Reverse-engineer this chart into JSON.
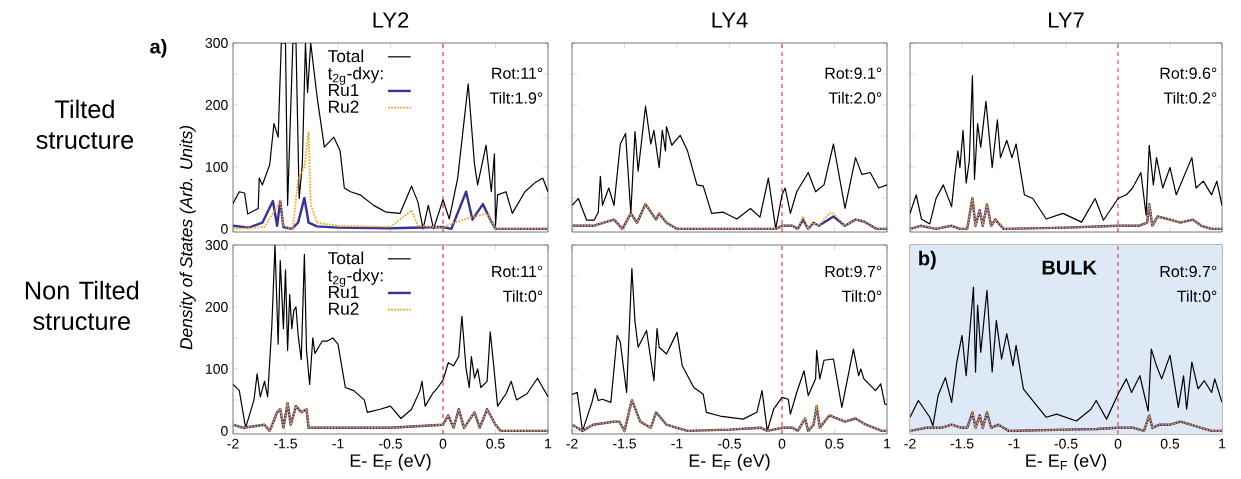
{
  "chart_data": [
    {
      "type": "line",
      "title": "LY2",
      "xlim": [
        -2,
        1
      ],
      "ylim": [
        -5,
        300
      ],
      "xticks": [
        -2,
        -1.5,
        -1,
        -0.5,
        0,
        0.5,
        1
      ],
      "yticks": [
        0,
        {
          "value": 50,
          "label": null
        },
        100,
        {
          "value": 150,
          "label": null
        },
        200,
        {
          "value": 250,
          "label": null
        },
        300
      ],
      "tick_labels": "y",
      "legend": "top",
      "legend_title": "t$_{2g}$-dxy:",
      "annotations": [
        "a)",
        "Tilted structure",
        "Rot:11°",
        "Tilt:1.9°"
      ],
      "ref_lines": [
        {
          "axis": "x",
          "value": 0,
          "color": "#e8363c",
          "line_style": "dashed"
        }
      ],
      "series": [
        {
          "name": "Total",
          "color": "#000000",
          "x": [
            -2,
            -1.94,
            -1.89,
            -1.86,
            -1.76,
            -1.75,
            -1.72,
            -1.65,
            -1.61,
            -1.57,
            -1.54,
            -1.5,
            -1.48,
            -1.43,
            -1.4,
            -1.37,
            -1.34,
            -1.31,
            -1.29,
            -1.26,
            -1.2,
            -1.13,
            -1.04,
            -0.98,
            -0.94,
            -0.88,
            -0.79,
            -0.66,
            -0.54,
            -0.41,
            -0.3,
            -0.24,
            -0.19,
            -0.14,
            -0.09,
            0,
            0.06,
            0.14,
            0.24,
            0.3,
            0.33,
            0.41,
            0.46,
            0.49,
            0.5,
            0.52,
            0.6,
            0.66,
            0.78,
            0.88,
            0.95,
            1
          ],
          "values": [
            41,
            60,
            58,
            24,
            33,
            82,
            71,
            104,
            170,
            148,
            300,
            300,
            38,
            300,
            300,
            49,
            104,
            300,
            220,
            300,
            214,
            132,
            148,
            126,
            66,
            60,
            55,
            38,
            27,
            25,
            69,
            44,
            0,
            38,
            0,
            47,
            16,
            82,
            234,
            104,
            71,
            135,
            60,
            121,
            5,
            55,
            60,
            25,
            60,
            75,
            82,
            60
          ]
        },
        {
          "name": "Ru1",
          "color": "#33339a",
          "x": [
            -2,
            -1.85,
            -1.72,
            -1.62,
            -1.58,
            -1.55,
            -1.52,
            -1.44,
            -1.38,
            -1.32,
            -1.28,
            -1.2,
            -1,
            -0.5,
            0,
            0.08,
            0.22,
            0.28,
            0.38,
            0.45,
            0.5,
            1
          ],
          "values": [
            5,
            2,
            10,
            45,
            5,
            45,
            3,
            0,
            10,
            50,
            10,
            4,
            2,
            1,
            3,
            0,
            60,
            15,
            40,
            15,
            0,
            0
          ]
        },
        {
          "name": "Ru2",
          "color": "#f7a21b",
          "line_style": "dotted",
          "x": [
            -2,
            -1.7,
            -1.55,
            -1.52,
            -1.43,
            -1.38,
            -1.32,
            -1.28,
            -1.26,
            -1.2,
            -1,
            -0.5,
            -0.3,
            -0.24,
            0,
            0.1,
            0.3,
            0.42,
            0.5,
            1
          ],
          "values": [
            0,
            3,
            45,
            5,
            0,
            80,
            100,
            157,
            40,
            10,
            5,
            3,
            30,
            5,
            2,
            10,
            20,
            25,
            0,
            0
          ]
        }
      ]
    },
    {
      "type": "line",
      "title": "LY4",
      "xlim": [
        -2,
        1
      ],
      "ylim": [
        -5,
        300
      ],
      "xticks": [
        -2,
        -1.5,
        -1,
        -0.5,
        0,
        0.5,
        1
      ],
      "yticks": [
        0,
        {
          "value": 50,
          "label": null
        },
        100,
        {
          "value": 150,
          "label": null
        },
        200,
        {
          "value": 250,
          "label": null
        },
        300
      ],
      "tick_labels": false,
      "annotations": [
        "Rot:9.1°",
        "Tilt:2.0°"
      ],
      "ref_lines": [
        {
          "axis": "x",
          "value": 0,
          "color": "#e8363c",
          "line_style": "dashed"
        }
      ],
      "series": [
        {
          "color": "#000000",
          "x": [
            -2,
            -1.94,
            -1.86,
            -1.79,
            -1.75,
            -1.73,
            -1.71,
            -1.65,
            -1.6,
            -1.54,
            -1.49,
            -1.44,
            -1.4,
            -1.37,
            -1.3,
            -1.25,
            -1.22,
            -1.17,
            -1.14,
            -1.11,
            -1.1,
            -1.05,
            -0.97,
            -0.9,
            -0.81,
            -0.75,
            -0.67,
            -0.56,
            -0.43,
            -0.3,
            -0.21,
            -0.13,
            -0.06,
            0,
            0.03,
            0.08,
            0.14,
            0.25,
            0.32,
            0.4,
            0.49,
            0.6,
            0.7,
            0.76,
            0.84,
            0.92,
            1
          ],
          "values": [
            38,
            49,
            14,
            14,
            27,
            85,
            38,
            66,
            38,
            137,
            154,
            25,
            157,
            93,
            198,
            137,
            159,
            99,
            159,
            126,
            165,
            135,
            151,
            126,
            71,
            69,
            25,
            27,
            16,
            33,
            19,
            82,
            0,
            55,
            66,
            25,
            60,
            91,
            60,
            71,
            137,
            33,
            115,
            88,
            91,
            66,
            71
          ]
        },
        {
          "color": "#33339a",
          "x": [
            -2,
            -1.8,
            -1.6,
            -1.52,
            -1.44,
            -1.38,
            -1.3,
            -1.2,
            -1.17,
            -1.1,
            -1,
            -0.5,
            -0.06,
            0,
            0.1,
            0.15,
            0.2,
            0.25,
            0.3,
            0.35,
            0.49,
            0.6,
            0.7,
            0.78,
            0.9,
            1
          ],
          "values": [
            5,
            5,
            15,
            0,
            25,
            10,
            40,
            15,
            25,
            10,
            0,
            0,
            0,
            5,
            5,
            0,
            15,
            0,
            10,
            5,
            20,
            5,
            15,
            12,
            0,
            0
          ]
        },
        {
          "color": "#f7a21b",
          "line_style": "dotted",
          "x": [
            -2,
            -1.8,
            -1.6,
            -1.52,
            -1.44,
            -1.38,
            -1.3,
            -1.2,
            -1.17,
            -1.1,
            -1,
            -0.5,
            -0.06,
            0,
            0.1,
            0.15,
            0.2,
            0.25,
            0.3,
            0.35,
            0.45,
            0.49,
            0.6,
            0.7,
            0.78,
            0.9,
            1
          ],
          "values": [
            5,
            5,
            15,
            0,
            25,
            10,
            40,
            15,
            25,
            10,
            0,
            0,
            0,
            5,
            5,
            0,
            20,
            0,
            10,
            5,
            25,
            25,
            5,
            15,
            12,
            0,
            0
          ]
        }
      ]
    },
    {
      "type": "line",
      "title": "LY7",
      "xlim": [
        -2,
        1
      ],
      "ylim": [
        -5,
        300
      ],
      "xticks": [
        -2,
        -1.5,
        -1,
        -0.5,
        0,
        0.5,
        1
      ],
      "yticks": [
        0,
        {
          "value": 50,
          "label": null
        },
        100,
        {
          "value": 150,
          "label": null
        },
        200,
        {
          "value": 250,
          "label": null
        },
        300
      ],
      "tick_labels": false,
      "annotations": [
        "Rot:9.6°",
        "Tilt:0.2°"
      ],
      "ref_lines": [
        {
          "axis": "x",
          "value": 0,
          "color": "#e8363c",
          "line_style": "dashed"
        }
      ],
      "series": [
        {
          "color": "#000000",
          "x": [
            -2,
            -1.94,
            -1.89,
            -1.81,
            -1.75,
            -1.68,
            -1.6,
            -1.57,
            -1.54,
            -1.52,
            -1.49,
            -1.46,
            -1.43,
            -1.4,
            -1.38,
            -1.35,
            -1.32,
            -1.27,
            -1.21,
            -1.16,
            -1.13,
            -1.07,
            -1.02,
            -0.98,
            -0.9,
            -0.82,
            -0.69,
            -0.53,
            -0.35,
            -0.22,
            -0.14,
            0,
            0.08,
            0.14,
            0.22,
            0.27,
            0.3,
            0.34,
            0.37,
            0.43,
            0.5,
            0.56,
            0.71,
            0.75,
            0.82,
            0.9,
            0.95,
            1
          ],
          "values": [
            25,
            55,
            16,
            8,
            49,
            71,
            36,
            85,
            126,
            99,
            159,
            74,
            110,
            247,
            80,
            170,
            132,
            206,
            99,
            176,
            115,
            143,
            115,
            137,
            55,
            49,
            16,
            25,
            11,
            49,
            14,
            49,
            55,
            66,
            91,
            22,
            135,
            71,
            115,
            66,
            99,
            55,
            115,
            66,
            77,
            55,
            77,
            38
          ]
        },
        {
          "color": "#33339a",
          "x": [
            -2,
            -1.9,
            -1.75,
            -1.6,
            -1.52,
            -1.45,
            -1.4,
            -1.37,
            -1.33,
            -1.3,
            -1.26,
            -1.22,
            -1.18,
            -1.1,
            -0.5,
            0,
            0.2,
            0.28,
            0.3,
            0.33,
            0.38,
            0.5,
            0.6,
            0.72,
            0.8,
            0.9,
            1
          ],
          "values": [
            0,
            5,
            0,
            5,
            0,
            0,
            50,
            5,
            30,
            5,
            40,
            5,
            15,
            0,
            2,
            5,
            5,
            10,
            40,
            5,
            20,
            15,
            10,
            15,
            5,
            0,
            0
          ]
        },
        {
          "color": "#f7a21b",
          "line_style": "dotted",
          "x": [
            -2,
            -1.9,
            -1.75,
            -1.6,
            -1.52,
            -1.45,
            -1.4,
            -1.37,
            -1.33,
            -1.3,
            -1.26,
            -1.22,
            -1.18,
            -1.1,
            -0.5,
            0,
            0.2,
            0.28,
            0.3,
            0.33,
            0.38,
            0.5,
            0.6,
            0.72,
            0.8,
            0.9,
            1
          ],
          "values": [
            0,
            5,
            0,
            5,
            0,
            0,
            50,
            5,
            30,
            5,
            40,
            5,
            15,
            0,
            2,
            5,
            5,
            10,
            40,
            5,
            20,
            15,
            10,
            15,
            5,
            0,
            0
          ]
        }
      ]
    },
    {
      "type": "line",
      "xlabel": "E- E$_{F}$ (eV)",
      "ylabel": "Density of States (Arb. Units)",
      "xlim": [
        -2,
        1
      ],
      "ylim": [
        -5,
        300
      ],
      "xticks": [
        -2,
        -1.5,
        -1,
        -0.5,
        0,
        0.5,
        1
      ],
      "yticks": [
        0,
        {
          "value": 50,
          "label": null
        },
        100,
        {
          "value": 150,
          "label": null
        },
        200,
        {
          "value": 250,
          "label": null
        },
        300
      ],
      "legend": "top",
      "legend_title": "t$_{2g}$-dxy:",
      "annotations": [
        "Non Tilted structure",
        "Rot:11°",
        "Tilt:0°"
      ],
      "ref_lines": [
        {
          "axis": "x",
          "value": 0,
          "color": "#e8363c",
          "line_style": "dashed"
        }
      ],
      "series": [
        {
          "name": "Total",
          "color": "#000000",
          "x": [
            -2,
            -1.94,
            -1.88,
            -1.8,
            -1.77,
            -1.74,
            -1.7,
            -1.67,
            -1.63,
            -1.6,
            -1.57,
            -1.55,
            -1.52,
            -1.5,
            -1.48,
            -1.46,
            -1.44,
            -1.42,
            -1.4,
            -1.38,
            -1.35,
            -1.32,
            -1.3,
            -1.27,
            -1.24,
            -1.22,
            -1.15,
            -1.1,
            -1.05,
            -1,
            -0.93,
            -0.85,
            -0.75,
            -0.72,
            -0.6,
            -0.5,
            -0.4,
            -0.3,
            -0.22,
            -0.2,
            -0.17,
            -0.1,
            -0.05,
            0,
            0.05,
            0.1,
            0.15,
            0.18,
            0.22,
            0.25,
            0.27,
            0.3,
            0.33,
            0.36,
            0.42,
            0.45,
            0.48,
            0.52,
            0.6,
            0.65,
            0.7,
            0.8,
            0.9,
            1
          ],
          "values": [
            75,
            65,
            5,
            50,
            92,
            55,
            80,
            55,
            170,
            300,
            140,
            275,
            165,
            260,
            130,
            220,
            165,
            195,
            200,
            155,
            115,
            285,
            130,
            75,
            150,
            125,
            145,
            145,
            150,
            140,
            70,
            65,
            50,
            30,
            35,
            40,
            20,
            35,
            65,
            80,
            40,
            60,
            70,
            82,
            110,
            105,
            120,
            185,
            100,
            70,
            120,
            85,
            100,
            70,
            80,
            160,
            110,
            40,
            60,
            80,
            50,
            60,
            85,
            55
          ]
        },
        {
          "name": "Ru1",
          "color": "#33339a",
          "x": [
            -2,
            -1.9,
            -1.7,
            -1.65,
            -1.58,
            -1.55,
            -1.52,
            -1.48,
            -1.45,
            -1.4,
            -1.35,
            -1.3,
            -1.28,
            -1.2,
            -1,
            -0.5,
            0,
            0.05,
            0.1,
            0.15,
            0.2,
            0.3,
            0.35,
            0.42,
            0.5,
            0.55,
            1
          ],
          "values": [
            10,
            5,
            10,
            0,
            30,
            35,
            5,
            45,
            10,
            40,
            30,
            35,
            5,
            5,
            5,
            5,
            10,
            25,
            5,
            35,
            5,
            30,
            5,
            35,
            10,
            0,
            0
          ]
        },
        {
          "name": "Ru2",
          "color": "#f7a21b",
          "line_style": "dotted",
          "x": [
            -2,
            -1.9,
            -1.7,
            -1.65,
            -1.58,
            -1.55,
            -1.52,
            -1.48,
            -1.45,
            -1.4,
            -1.35,
            -1.3,
            -1.28,
            -1.2,
            -1,
            -0.5,
            0,
            0.05,
            0.1,
            0.15,
            0.2,
            0.3,
            0.35,
            0.42,
            0.5,
            0.55,
            1
          ],
          "values": [
            10,
            5,
            10,
            0,
            30,
            35,
            5,
            45,
            10,
            40,
            30,
            35,
            5,
            5,
            5,
            5,
            10,
            25,
            5,
            35,
            5,
            30,
            5,
            35,
            10,
            0,
            0
          ]
        }
      ]
    },
    {
      "type": "line",
      "xlabel": "E- E$_{F}$ (eV)",
      "xlim": [
        -2,
        1
      ],
      "ylim": [
        -5,
        300
      ],
      "xticks": [
        -2,
        -1.5,
        -1,
        -0.5,
        0,
        0.5,
        1
      ],
      "yticks": [
        0,
        {
          "value": 50,
          "label": null
        },
        100,
        {
          "value": 150,
          "label": null
        },
        200,
        {
          "value": 250,
          "label": null
        },
        300
      ],
      "tick_labels": "x",
      "annotations": [
        "Rot:9.7°",
        "Tilt:0°"
      ],
      "ref_lines": [
        {
          "axis": "x",
          "value": 0,
          "color": "#e8363c",
          "line_style": "dashed"
        }
      ],
      "series": [
        {
          "color": "#000000",
          "x": [
            -2,
            -1.95,
            -1.9,
            -1.81,
            -1.78,
            -1.75,
            -1.71,
            -1.63,
            -1.6,
            -1.57,
            -1.54,
            -1.48,
            -1.43,
            -1.4,
            -1.37,
            -1.29,
            -1.22,
            -1.19,
            -1.17,
            -1.1,
            -1,
            -0.95,
            -0.84,
            -0.75,
            -0.72,
            -0.59,
            -0.37,
            -0.24,
            -0.19,
            -0.14,
            -0.08,
            0,
            0.06,
            0.08,
            0.14,
            0.21,
            0.25,
            0.32,
            0.33,
            0.36,
            0.4,
            0.49,
            0.57,
            0.68,
            0.73,
            0.75,
            0.78,
            0.89,
            0.94,
            0.98,
            1
          ],
          "values": [
            59,
            62,
            0,
            46,
            68,
            49,
            51,
            46,
            100,
            154,
            143,
            62,
            262,
            176,
            135,
            162,
            81,
            165,
            135,
            124,
            159,
            105,
            70,
            59,
            30,
            24,
            19,
            30,
            65,
            0,
            35,
            54,
            51,
            27,
            62,
            97,
            57,
            84,
            130,
            84,
            114,
            116,
            38,
            132,
            89,
            100,
            84,
            65,
            76,
            43,
            43
          ]
        },
        {
          "color": "#33339a",
          "x": [
            -2,
            -1.9,
            -1.8,
            -1.6,
            -1.55,
            -1.5,
            -1.43,
            -1.35,
            -1.3,
            -1.25,
            -1.2,
            -1.1,
            -1,
            -0.9,
            -0.5,
            -0.2,
            -0.14,
            0,
            0.1,
            0.15,
            0.22,
            0.25,
            0.3,
            0.33,
            0.36,
            0.45,
            0.6,
            0.7,
            0.8,
            0.95,
            1
          ],
          "values": [
            10,
            0,
            10,
            15,
            15,
            0,
            50,
            15,
            10,
            5,
            30,
            10,
            5,
            0,
            2,
            5,
            0,
            5,
            5,
            0,
            20,
            0,
            10,
            40,
            5,
            25,
            15,
            20,
            10,
            0,
            0
          ]
        },
        {
          "color": "#f7a21b",
          "line_style": "dotted",
          "x": [
            -2,
            -1.9,
            -1.8,
            -1.6,
            -1.55,
            -1.5,
            -1.43,
            -1.35,
            -1.3,
            -1.25,
            -1.2,
            -1.1,
            -1,
            -0.9,
            -0.5,
            -0.2,
            -0.14,
            0,
            0.1,
            0.15,
            0.22,
            0.25,
            0.3,
            0.33,
            0.36,
            0.45,
            0.6,
            0.7,
            0.8,
            0.95,
            1
          ],
          "values": [
            10,
            0,
            10,
            15,
            15,
            0,
            50,
            15,
            10,
            5,
            30,
            10,
            5,
            0,
            2,
            5,
            0,
            5,
            5,
            0,
            20,
            0,
            10,
            40,
            5,
            25,
            15,
            20,
            10,
            0,
            0
          ]
        }
      ]
    },
    {
      "type": "line",
      "xlabel": "E- E$_{F}$ (eV)",
      "xlim": [
        -2,
        1
      ],
      "ylim": [
        -5,
        300
      ],
      "xticks": [
        -2,
        -1.5,
        -1,
        -0.5,
        0,
        0.5,
        1
      ],
      "yticks": [
        0,
        {
          "value": 50,
          "label": null
        },
        100,
        {
          "value": 150,
          "label": null
        },
        200,
        {
          "value": 250,
          "label": null
        },
        300
      ],
      "tick_labels": "x",
      "annotations": [
        "b)",
        "BULK",
        "Rot:9.7°",
        "Tilt:0°"
      ],
      "bands": [
        {
          "axis": "x",
          "from": -2,
          "to": 1,
          "color": "#dde9f6"
        }
      ],
      "ref_lines": [
        {
          "axis": "x",
          "value": 0,
          "color": "#e8363c",
          "line_style": "dashed"
        }
      ],
      "series": [
        {
          "color": "#000000",
          "x": [
            -2,
            -1.92,
            -1.81,
            -1.78,
            -1.73,
            -1.66,
            -1.6,
            -1.55,
            -1.5,
            -1.46,
            -1.39,
            -1.37,
            -1.35,
            -1.32,
            -1.26,
            -1.21,
            -1.17,
            -1.12,
            -1.07,
            -1.01,
            -0.98,
            -0.91,
            -0.82,
            -0.69,
            -0.59,
            -0.4,
            -0.26,
            -0.21,
            -0.11,
            0,
            0.08,
            0.13,
            0.21,
            0.29,
            0.32,
            0.37,
            0.42,
            0.5,
            0.58,
            0.63,
            0.66,
            0.71,
            0.77,
            0.83,
            0.9,
            0.93,
            1
          ],
          "values": [
            22,
            49,
            22,
            8,
            57,
            86,
            46,
            111,
            154,
            89,
            232,
            95,
            203,
            127,
            227,
            95,
            178,
            116,
            157,
            105,
            138,
            68,
            49,
            22,
            27,
            16,
            35,
            49,
            19,
            59,
            84,
            62,
            89,
            32,
            132,
            105,
            84,
            122,
            38,
            89,
            35,
            111,
            68,
            81,
            62,
            84,
            46
          ]
        },
        {
          "color": "#33339a",
          "x": [
            -2,
            -1.85,
            -1.7,
            -1.6,
            -1.5,
            -1.45,
            -1.4,
            -1.37,
            -1.33,
            -1.3,
            -1.26,
            -1.22,
            -1.15,
            -1.05,
            -0.5,
            -0.2,
            0,
            0.15,
            0.25,
            0.3,
            0.33,
            0.4,
            0.5,
            0.6,
            0.7,
            0.8,
            0.9,
            1
          ],
          "values": [
            0,
            5,
            5,
            10,
            5,
            5,
            30,
            5,
            25,
            5,
            30,
            5,
            10,
            0,
            2,
            3,
            5,
            5,
            0,
            25,
            5,
            10,
            10,
            15,
            10,
            5,
            0,
            0
          ]
        },
        {
          "color": "#f7a21b",
          "line_style": "dotted",
          "x": [
            -2,
            -1.85,
            -1.7,
            -1.6,
            -1.5,
            -1.45,
            -1.4,
            -1.37,
            -1.33,
            -1.3,
            -1.26,
            -1.22,
            -1.15,
            -1.05,
            -0.5,
            -0.2,
            0,
            0.15,
            0.25,
            0.3,
            0.33,
            0.4,
            0.5,
            0.6,
            0.7,
            0.8,
            0.9,
            1
          ],
          "values": [
            0,
            5,
            5,
            10,
            5,
            5,
            30,
            5,
            25,
            5,
            30,
            5,
            10,
            0,
            2,
            3,
            5,
            5,
            0,
            25,
            5,
            10,
            10,
            15,
            10,
            5,
            0,
            0
          ]
        }
      ]
    }
  ]
}
